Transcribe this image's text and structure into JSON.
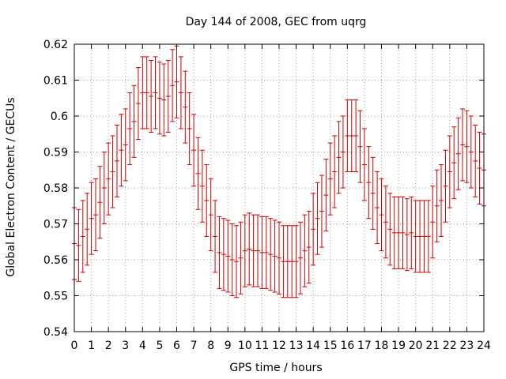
{
  "chart_data": {
    "type": "scatter",
    "title": "Day 144 of 2008, GEC from uqrg",
    "xlabel": "GPS time / hours",
    "ylabel": "Global Electron Content / GECUs",
    "xlim": [
      0,
      24
    ],
    "ylim": [
      0.54,
      0.62
    ],
    "x_ticks": [
      0,
      1,
      2,
      3,
      4,
      5,
      6,
      7,
      8,
      9,
      10,
      11,
      12,
      13,
      14,
      15,
      16,
      17,
      18,
      19,
      20,
      21,
      22,
      23,
      24
    ],
    "x_tick_labels": [
      "0",
      "1",
      "2",
      "3",
      "4",
      "5",
      "6",
      "7",
      "8",
      "9",
      "10",
      "11",
      "12",
      "13",
      "14",
      "15",
      "16",
      "17",
      "18",
      "19",
      "20",
      "21",
      "22",
      "23",
      "24"
    ],
    "y_ticks": [
      0.54,
      0.55,
      0.56,
      0.57,
      0.58,
      0.59,
      0.6,
      0.61,
      0.62
    ],
    "y_tick_labels": [
      "0.54",
      "0.55",
      "0.56",
      "0.57",
      "0.58",
      "0.59",
      "0.6",
      "0.61",
      "0.62"
    ],
    "grid": true,
    "error_bar_halfwidth": 0.01,
    "color": "#cc0000",
    "series": [
      {
        "x": [
          0,
          0.25,
          0.5,
          0.75,
          1,
          1.25,
          1.5,
          1.75,
          2,
          2.25,
          2.5,
          2.75,
          3,
          3.25,
          3.5,
          3.75,
          4,
          4.25,
          4.5,
          4.75,
          5,
          5.25,
          5.5,
          5.75,
          6,
          6.25,
          6.5,
          6.75,
          7,
          7.25,
          7.5,
          7.75,
          8,
          8.25,
          8.5,
          8.75,
          9,
          9.25,
          9.5,
          9.75,
          10,
          10.25,
          10.5,
          10.75,
          11,
          11.25,
          11.5,
          11.75,
          12,
          12.25,
          12.5,
          12.75,
          13,
          13.25,
          13.5,
          13.75,
          14,
          14.25,
          14.5,
          14.75,
          15,
          15.25,
          15.5,
          15.75,
          16,
          16.25,
          16.5,
          16.75,
          17,
          17.25,
          17.5,
          17.75,
          18,
          18.25,
          18.5,
          18.75,
          19,
          19.25,
          19.5,
          19.75,
          20,
          20.25,
          20.5,
          20.75,
          21,
          21.25,
          21.5,
          21.75,
          22,
          22.25,
          22.5,
          22.75,
          23,
          23.25,
          23.5,
          23.75,
          24
        ],
        "values": [
          0.5645,
          0.564,
          0.5665,
          0.5685,
          0.5715,
          0.5725,
          0.576,
          0.58,
          0.5825,
          0.5845,
          0.5875,
          0.5905,
          0.592,
          0.5965,
          0.5985,
          0.6035,
          0.6065,
          0.6065,
          0.6055,
          0.6065,
          0.605,
          0.6045,
          0.6055,
          0.6085,
          0.6095,
          0.6065,
          0.6025,
          0.5965,
          0.5905,
          0.584,
          0.5805,
          0.5765,
          0.5725,
          0.5665,
          0.562,
          0.5615,
          0.561,
          0.56,
          0.5595,
          0.5605,
          0.5625,
          0.563,
          0.5625,
          0.5625,
          0.562,
          0.562,
          0.5615,
          0.561,
          0.5605,
          0.5595,
          0.5595,
          0.5595,
          0.5595,
          0.5605,
          0.5625,
          0.5635,
          0.5685,
          0.5715,
          0.5735,
          0.578,
          0.5825,
          0.5845,
          0.5885,
          0.59,
          0.5945,
          0.5945,
          0.5945,
          0.5915,
          0.5865,
          0.5815,
          0.5785,
          0.5745,
          0.5725,
          0.5705,
          0.5685,
          0.5675,
          0.5675,
          0.5675,
          0.567,
          0.5675,
          0.5665,
          0.5665,
          0.5665,
          0.5665,
          0.5705,
          0.575,
          0.5765,
          0.5805,
          0.5845,
          0.587,
          0.5895,
          0.592,
          0.5915,
          0.59,
          0.5875,
          0.5855,
          0.585
        ]
      }
    ]
  }
}
